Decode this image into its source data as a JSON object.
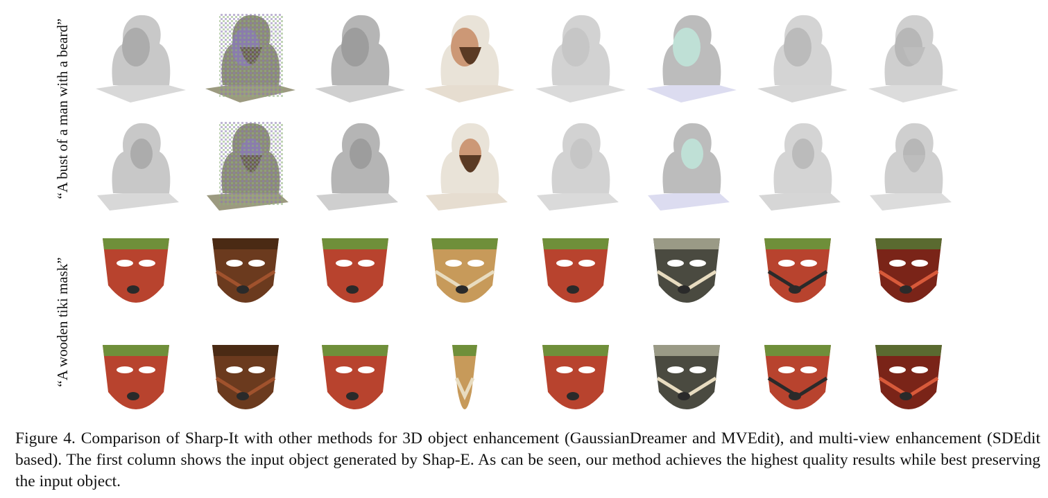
{
  "figure": {
    "row_groups": [
      {
        "prompt": "“A bust of a man with a beard”"
      },
      {
        "prompt": "“A wooden tiki mask”"
      }
    ],
    "caption": "Figure 4. Comparison of Sharp-It with other methods for 3D object enhancement (GaussianDreamer and MVEdit), and multi-view enhancement (SDEdit based). The first column shows the input object generated by Shap-E. As can be seen, our method achieves the highest quality results while best preserving the input object."
  },
  "palette": {
    "clay": "#c8c8c8",
    "clay_dark": "#a9a9a9",
    "skin": "#c98f6c",
    "beard": "#5a3a24",
    "noise_a": "#8a7bb0",
    "noise_b": "#8fb07a",
    "tiki_red": "#b8432e",
    "tiki_green": "#6f8f3a",
    "wood": "#6b3a1e",
    "carved_cream": "#e8dcc0"
  }
}
